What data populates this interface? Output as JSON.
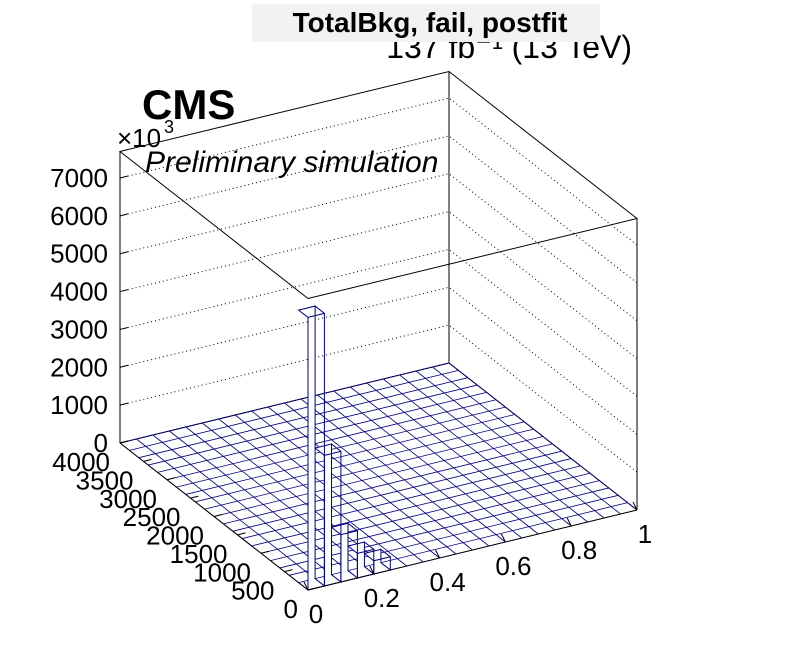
{
  "chart_data": {
    "type": "lego",
    "title": "TotalBkg, fail, postfit",
    "lumi": "137 fb⁻¹ (13 TeV)",
    "cms_label": "CMS",
    "extra_label": "Preliminary simulation",
    "z_multiplier": "×10",
    "z_multiplier_exponent": "3",
    "xlim": [
      0,
      1
    ],
    "xticks": [
      0,
      0.2,
      0.4,
      0.6,
      0.8,
      1
    ],
    "ylim": [
      0,
      4000
    ],
    "yticks": [
      0,
      500,
      1000,
      1500,
      2000,
      2500,
      3000,
      3500,
      4000
    ],
    "zlim": [
      0,
      7700
    ],
    "zticks": [
      0,
      1000,
      2000,
      3000,
      4000,
      5000,
      6000,
      7000
    ],
    "xbins": [
      0,
      0.05,
      0.1,
      0.15,
      0.2,
      0.25
    ],
    "ybins": [
      0,
      200
    ],
    "values": [
      7200,
      3450,
      1250,
      650,
      350
    ],
    "bar_color": "#ffffff",
    "line_color": "#000080",
    "grid": true
  }
}
